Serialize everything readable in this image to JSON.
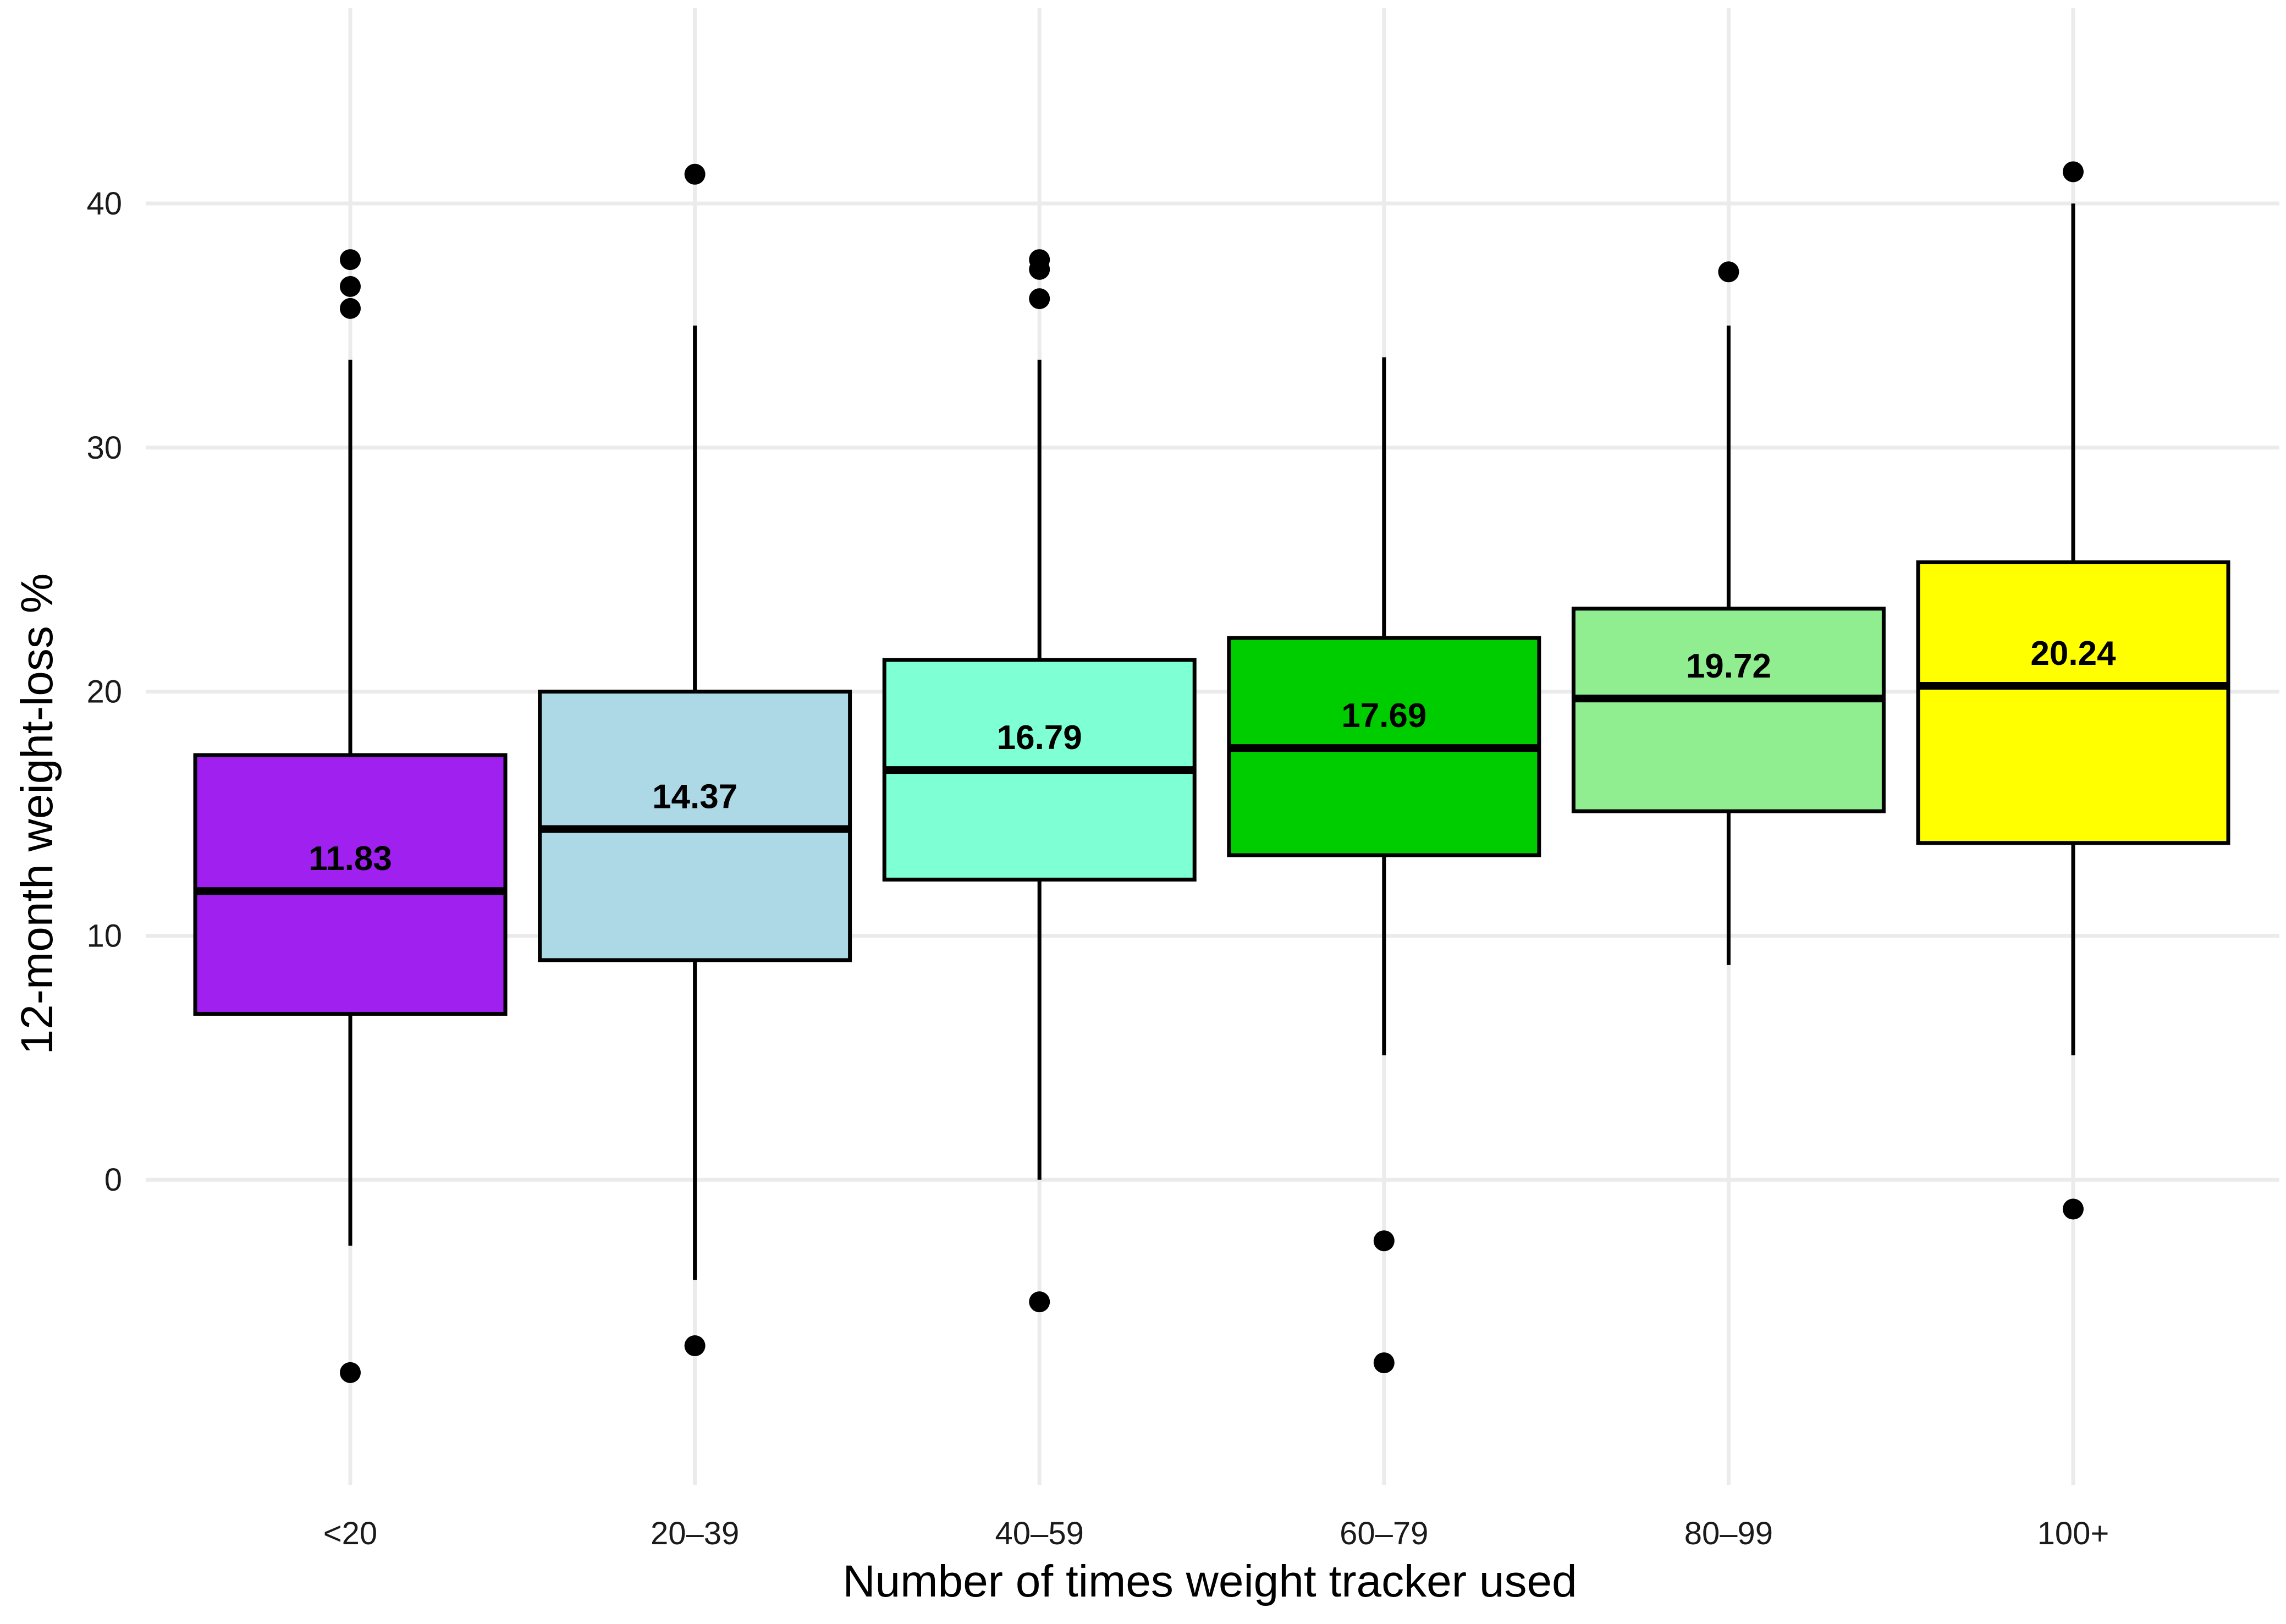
{
  "chart_data": {
    "type": "boxplot",
    "xlabel": "Number of times weight tracker used",
    "ylabel": "12-month weight-loss %",
    "ylim": [
      -12.5,
      48
    ],
    "yticks": [
      0,
      10,
      20,
      30,
      40
    ],
    "grid": true,
    "legend": "none",
    "categories": [
      "<20",
      "20–39",
      "40–59",
      "60–79",
      "80–99",
      "100+"
    ],
    "colors": [
      "#a020f0",
      "#add8e6",
      "#7fffd4",
      "#00cd00",
      "#90ee90",
      "#ffff00"
    ],
    "boxes": [
      {
        "category": "<20",
        "q1": 6.8,
        "median": 11.83,
        "median_label": "11.83",
        "q3": 17.4,
        "whisker_low": -2.7,
        "whisker_high": 33.6,
        "outliers": [
          37.7,
          36.6,
          35.7,
          -7.9
        ]
      },
      {
        "category": "20–39",
        "q1": 9.0,
        "median": 14.37,
        "median_label": "14.37",
        "q3": 20.0,
        "whisker_low": -4.1,
        "whisker_high": 35.0,
        "outliers": [
          41.2,
          -6.8
        ]
      },
      {
        "category": "40–59",
        "q1": 12.3,
        "median": 16.79,
        "median_label": "16.79",
        "q3": 21.3,
        "whisker_low": 0.0,
        "whisker_high": 33.6,
        "outliers": [
          37.7,
          37.3,
          36.1,
          -5.0
        ]
      },
      {
        "category": "60–79",
        "q1": 13.3,
        "median": 17.69,
        "median_label": "17.69",
        "q3": 22.2,
        "whisker_low": 5.1,
        "whisker_high": 33.7,
        "outliers": [
          -2.5,
          -7.5
        ]
      },
      {
        "category": "80–99",
        "q1": 15.1,
        "median": 19.72,
        "median_label": "19.72",
        "q3": 23.4,
        "whisker_low": 8.8,
        "whisker_high": 35.0,
        "outliers": [
          37.2
        ]
      },
      {
        "category": "100+",
        "q1": 13.8,
        "median": 20.24,
        "median_label": "20.24",
        "q3": 25.3,
        "whisker_low": 5.1,
        "whisker_high": 40.0,
        "outliers": [
          41.3,
          -1.2
        ]
      }
    ]
  }
}
